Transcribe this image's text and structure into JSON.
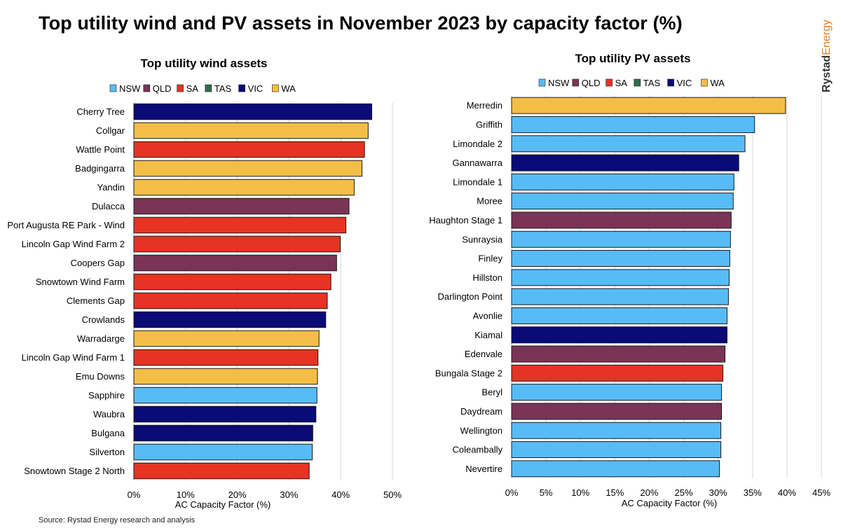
{
  "title": "Top utility wind and PV assets in November 2023 by capacity factor (%)",
  "brand": {
    "part1": "Rystad",
    "part2": "Energy"
  },
  "source": "Source: Rystad Energy research and analysis",
  "colors": {
    "NSW": "#57bcf5",
    "QLD": "#7a3456",
    "SA": "#e63323",
    "TAS": "#2e6e4e",
    "VIC": "#0a0a78",
    "WA": "#f4be46"
  },
  "chart_data": [
    {
      "type": "bar",
      "orientation": "horizontal",
      "title": "Top utility wind assets",
      "xlabel": "AC Capacity Factor (%)",
      "ylabel": "",
      "xlim": [
        0,
        50
      ],
      "xticks": [
        0,
        10,
        20,
        30,
        40,
        50
      ],
      "tick_labels": [
        "0%",
        "10%",
        "20%",
        "30%",
        "40%",
        "50%"
      ],
      "grid": true,
      "legend": [
        "NSW",
        "QLD",
        "SA",
        "TAS",
        "VIC",
        "WA"
      ],
      "legend_position": "top",
      "categories": [
        "Cherry Tree",
        "Collgar",
        "Wattle Point",
        "Badgingarra",
        "Yandin",
        "Dulacca",
        "Port Augusta RE Park - Wind",
        "Lincoln Gap Wind Farm 2",
        "Coopers Gap",
        "Snowtown Wind Farm",
        "Clements Gap",
        "Crowlands",
        "Warradarge",
        "Lincoln Gap Wind Farm 1",
        "Emu Downs",
        "Sapphire",
        "Waubra",
        "Bulgana",
        "Silverton",
        "Snowtown Stage 2 North"
      ],
      "values": [
        46.0,
        45.3,
        44.6,
        44.1,
        42.6,
        41.6,
        41.0,
        39.9,
        39.2,
        38.1,
        37.4,
        37.1,
        35.8,
        35.6,
        35.5,
        35.4,
        35.2,
        34.6,
        34.5,
        33.9
      ],
      "states": [
        "VIC",
        "WA",
        "SA",
        "WA",
        "WA",
        "QLD",
        "SA",
        "SA",
        "QLD",
        "SA",
        "SA",
        "VIC",
        "WA",
        "SA",
        "WA",
        "NSW",
        "VIC",
        "VIC",
        "NSW",
        "SA"
      ]
    },
    {
      "type": "bar",
      "orientation": "horizontal",
      "title": "Top utility PV assets",
      "xlabel": "AC Capacity Factor (%)",
      "ylabel": "",
      "xlim": [
        0,
        45
      ],
      "xticks": [
        0,
        5,
        10,
        15,
        20,
        25,
        30,
        35,
        40,
        45
      ],
      "tick_labels": [
        "0%",
        "5%",
        "10%",
        "15%",
        "20%",
        "25%",
        "30%",
        "35%",
        "40%",
        "45%"
      ],
      "grid": true,
      "legend": [
        "NSW",
        "QLD",
        "SA",
        "TAS",
        "VIC",
        "WA"
      ],
      "legend_position": "top",
      "categories": [
        "Merredin",
        "Griffith",
        "Limondale 2",
        "Gannawarra",
        "Limondale 1",
        "Moree",
        "Haughton Stage 1",
        "Sunraysia",
        "Finley",
        "Hillston",
        "Darlington Point",
        "Avonlie",
        "Kiamal",
        "Edenvale",
        "Bungala Stage 2",
        "Beryl",
        "Daydream",
        "Wellington",
        "Coleambally",
        "Nevertire"
      ],
      "values": [
        39.8,
        35.3,
        33.9,
        33.0,
        32.3,
        32.2,
        31.9,
        31.8,
        31.7,
        31.6,
        31.5,
        31.3,
        31.3,
        31.0,
        30.7,
        30.5,
        30.5,
        30.4,
        30.4,
        30.2
      ],
      "states": [
        "WA",
        "NSW",
        "NSW",
        "VIC",
        "NSW",
        "NSW",
        "QLD",
        "NSW",
        "NSW",
        "NSW",
        "NSW",
        "NSW",
        "VIC",
        "QLD",
        "SA",
        "NSW",
        "QLD",
        "NSW",
        "NSW",
        "NSW"
      ]
    }
  ]
}
